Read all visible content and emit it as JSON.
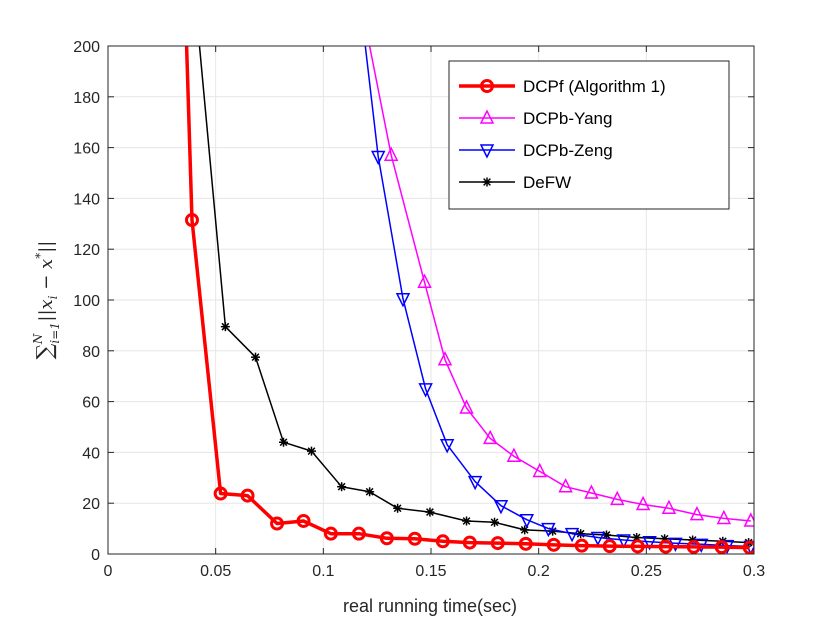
{
  "chart_data": {
    "type": "line",
    "title": "",
    "xlabel": "real running time(sec)",
    "ylabel": "∑_{i=1}^{N} ||x_i − x*||",
    "xlim": [
      0,
      0.3
    ],
    "ylim": [
      0,
      200
    ],
    "xticks": [
      0,
      0.05,
      0.1,
      0.15,
      0.2,
      0.25,
      0.3
    ],
    "xtick_labels": [
      "0",
      "0.05",
      "0.1",
      "0.15",
      "0.2",
      "0.25",
      "0.3"
    ],
    "yticks": [
      0,
      20,
      40,
      60,
      80,
      100,
      120,
      140,
      160,
      180,
      200
    ],
    "ytick_labels": [
      "0",
      "20",
      "40",
      "60",
      "80",
      "100",
      "120",
      "140",
      "160",
      "180",
      "200"
    ],
    "grid": true,
    "legend_position": "top-right",
    "series": [
      {
        "name": "DCPf (Algorithm 1)",
        "color": "#ff0000",
        "marker": "circle",
        "line_width": "thick",
        "x": [
          0.0365,
          0.039,
          0.0523,
          0.0648,
          0.0785,
          0.0908,
          0.1035,
          0.1165,
          0.1295,
          0.1425,
          0.1555,
          0.168,
          0.181,
          0.194,
          0.207,
          0.22,
          0.233,
          0.246,
          0.259,
          0.272,
          0.285,
          0.298
        ],
        "y": [
          200,
          131.5,
          23.8,
          23,
          12,
          13,
          8,
          8,
          6.2,
          6,
          5,
          4.5,
          4.3,
          4,
          3.6,
          3.3,
          3.1,
          3,
          2.9,
          2.8,
          2.7,
          2.5
        ],
        "markers_from_index": 1
      },
      {
        "name": "DCPb-Yang",
        "color": "#ff00ff",
        "marker": "triangle-up",
        "line_width": "thin",
        "x": [
          0.1215,
          0.1315,
          0.147,
          0.1565,
          0.1665,
          0.1775,
          0.1885,
          0.2005,
          0.2125,
          0.2245,
          0.2365,
          0.2485,
          0.2605,
          0.2735,
          0.286,
          0.2985
        ],
        "y": [
          200,
          157,
          107,
          76.5,
          57.5,
          45.5,
          38.5,
          32.5,
          26.5,
          24,
          21.5,
          19.5,
          18,
          15.5,
          14,
          13
        ],
        "markers_from_index": 1
      },
      {
        "name": "DCPb-Zeng",
        "color": "#0000ff",
        "marker": "triangle-down",
        "line_width": "thin",
        "x": [
          0.1195,
          0.1255,
          0.137,
          0.1475,
          0.1575,
          0.1705,
          0.1825,
          0.1945,
          0.2045,
          0.2155,
          0.2275,
          0.2395,
          0.2515,
          0.2635,
          0.2755,
          0.2875,
          0.2985
        ],
        "y": [
          200,
          156.5,
          100.5,
          65,
          43,
          28.5,
          19,
          13.5,
          10,
          8,
          6.5,
          5.5,
          4.8,
          4.2,
          3.8,
          3.3,
          3
        ],
        "markers_from_index": 1
      },
      {
        "name": "DeFW",
        "color": "#000000",
        "marker": "asterisk",
        "line_width": "thin",
        "x": [
          0.0425,
          0.0545,
          0.0685,
          0.0815,
          0.0945,
          0.1085,
          0.1215,
          0.1345,
          0.1495,
          0.1665,
          0.1795,
          0.1935,
          0.2065,
          0.2195,
          0.2315,
          0.2455,
          0.2585,
          0.2715,
          0.2855,
          0.2975
        ],
        "y": [
          200,
          89.5,
          77.5,
          44,
          40.5,
          26.5,
          24.5,
          18,
          16.5,
          13,
          12.5,
          9.5,
          9,
          8,
          7.5,
          6.5,
          6,
          5.5,
          5,
          4.5
        ],
        "markers_from_index": 1
      }
    ]
  },
  "axis_color": "#262626",
  "grid_color": "#e6e6e6",
  "y_axis_title": {
    "sum": "∑",
    "sub": "i=1",
    "sup": "N",
    "body": "||x",
    "body_sub": "i",
    "mid": " − x",
    "mid_sup": "*",
    "tail": "||"
  }
}
